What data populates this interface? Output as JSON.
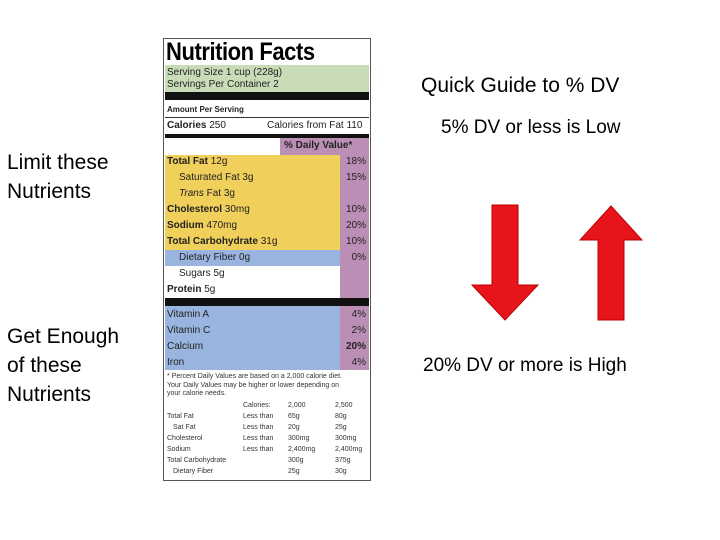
{
  "guide": {
    "title": "Quick Guide to % DV",
    "low": "5% DV or less is Low",
    "high": "20% DV or more is High"
  },
  "side_labels": {
    "limit": [
      "Limit these",
      "Nutrients"
    ],
    "enough": [
      "Get Enough",
      "of these",
      "Nutrients"
    ]
  },
  "label": {
    "title": "Nutrition Facts",
    "serving_size": "Serving Size 1 cup (228g)",
    "servings": "Servings Per Container  2",
    "amount_per_serving": "Amount Per Serving",
    "calories": "Calories",
    "calories_value": "250",
    "calories_from_fat": "Calories from Fat 110",
    "daily_value_header": "% Daily Value*",
    "nutrients": [
      {
        "name": "Total Fat",
        "amount": "12g",
        "dv": "18%"
      },
      {
        "name": "Saturated Fat",
        "amount": "3g",
        "dv": "15%"
      },
      {
        "name": "Trans",
        "name_rest": "Fat",
        "amount": "3g"
      },
      {
        "name": "Cholesterol",
        "amount": "30mg",
        "dv": "10%"
      },
      {
        "name": "Sodium",
        "amount": "470mg",
        "dv": "20%"
      },
      {
        "name": "Total Carbohydrate",
        "amount": "31g",
        "dv": "10%"
      },
      {
        "name": "Dietary Fiber",
        "amount": "0g",
        "dv": "0%"
      },
      {
        "name": "Sugars",
        "amount": "5g"
      },
      {
        "name": "Protein",
        "amount": "5g"
      }
    ],
    "vitamins": [
      {
        "name": "Vitamin A",
        "dv": "4%"
      },
      {
        "name": "Vitamin C",
        "dv": "2%"
      },
      {
        "name": "Calcium",
        "dv": "20%"
      },
      {
        "name": "Iron",
        "dv": "4%"
      }
    ],
    "footnote": [
      "* Percent Daily Values are based on a 2,000 calorie diet.",
      "Your Daily Values may be higher or lower depending on",
      "your calorie needs."
    ],
    "table": {
      "header": [
        "Calories:",
        "2,000",
        "2,500"
      ],
      "rows": [
        [
          "Total Fat",
          "Less than",
          "65g",
          "80g"
        ],
        [
          "Sat Fat",
          "Less than",
          "20g",
          "25g"
        ],
        [
          "Cholesterol",
          "Less than",
          "300mg",
          "300mg"
        ],
        [
          "Sodium",
          "Less than",
          "2,400mg",
          "2,400mg"
        ],
        [
          "Total Carbohydrate",
          "",
          "300g",
          "375g"
        ],
        [
          "Dietary Fiber",
          "",
          "25g",
          "30g"
        ]
      ]
    }
  }
}
